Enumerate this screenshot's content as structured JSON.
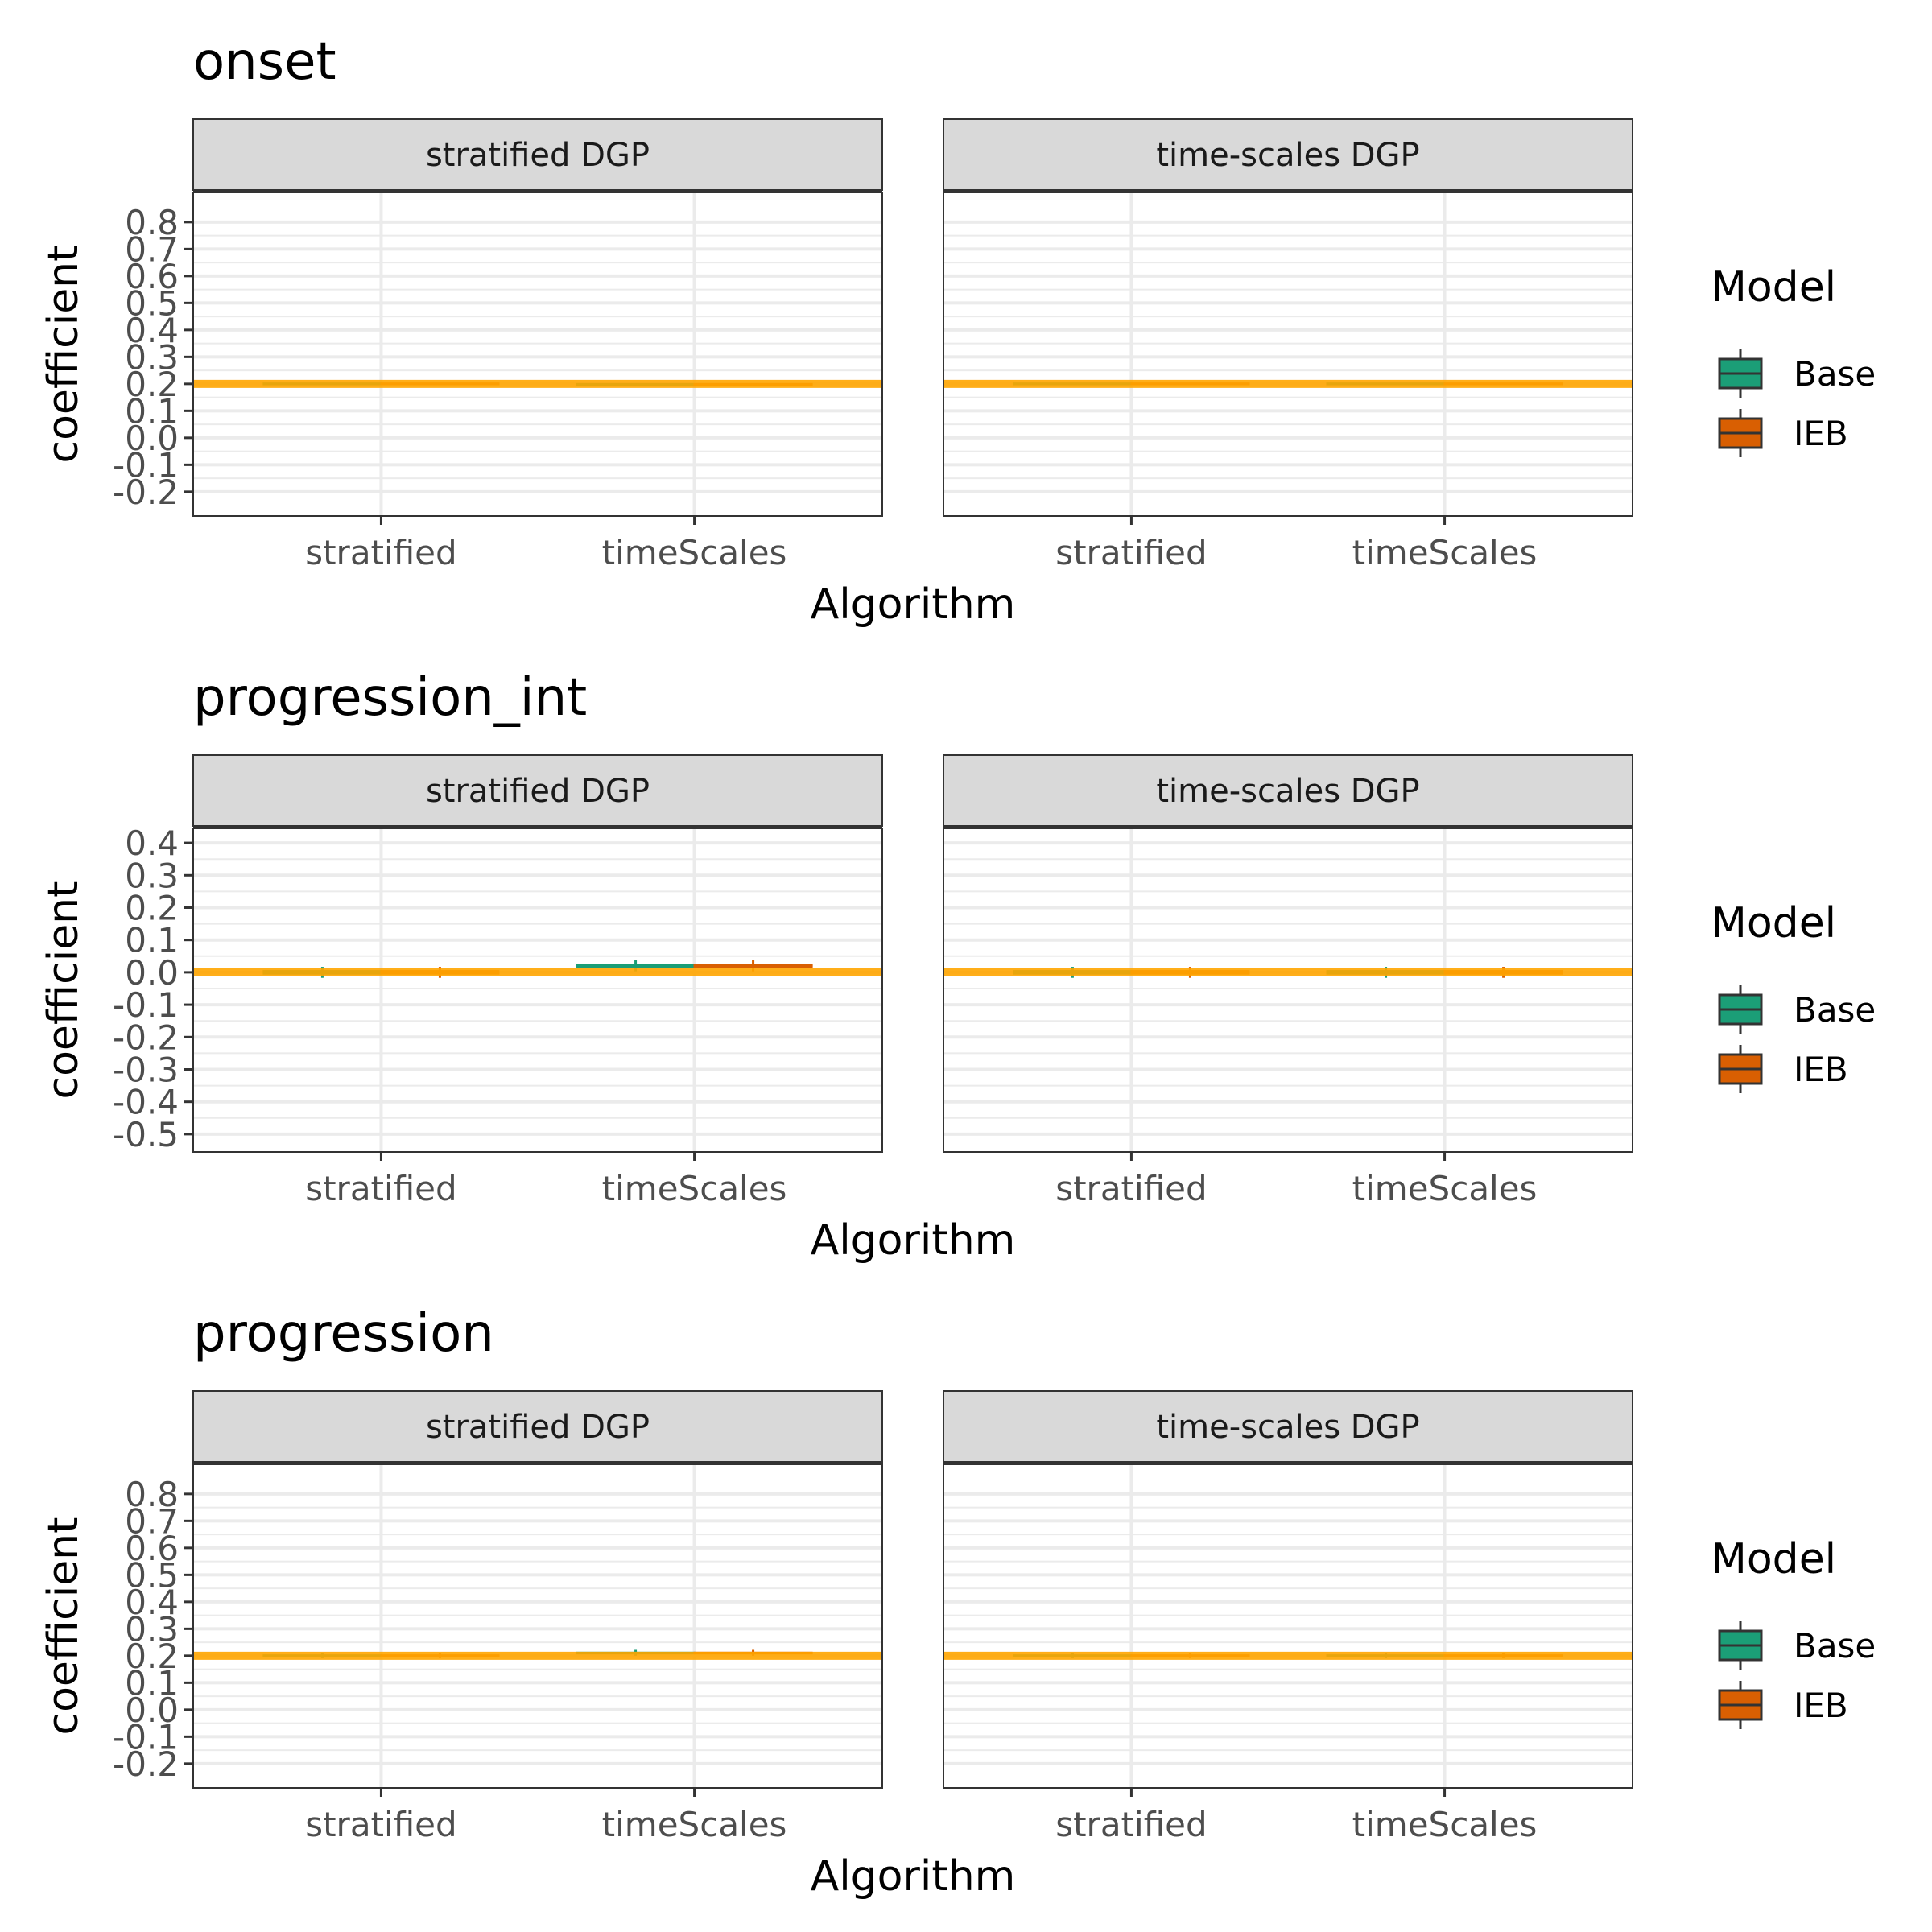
{
  "chart_data": [
    {
      "type": "box",
      "title": "onset",
      "xlabel": "Algorithm",
      "ylabel": "coefficient",
      "facets": [
        "stratified DGP",
        "time-scales DGP"
      ],
      "categories": [
        "stratified",
        "timeScales"
      ],
      "yticks": [
        "0.8",
        "0.7",
        "0.6",
        "0.5",
        "0.4",
        "0.3",
        "0.2",
        "0.1",
        "0.0",
        "-0.1",
        "-0.2"
      ],
      "ylim": [
        -0.29,
        0.91
      ],
      "reference_line": 0.2,
      "legend": {
        "title": "Model",
        "position": "right",
        "entries": [
          "Base",
          "IEB"
        ]
      },
      "series": [
        {
          "name": "Base",
          "color": "#1B9E77",
          "boxes": [
            {
              "facet": "stratified DGP",
              "category": "stratified",
              "lower": 0.195,
              "median": 0.2,
              "upper": 0.205,
              "whisker_low": 0.196,
              "whisker_high": 0.204
            },
            {
              "facet": "stratified DGP",
              "category": "timeScales",
              "lower": 0.193,
              "median": 0.198,
              "upper": 0.203,
              "whisker_low": 0.194,
              "whisker_high": 0.202
            },
            {
              "facet": "time-scales DGP",
              "category": "stratified",
              "lower": 0.195,
              "median": 0.2,
              "upper": 0.205,
              "whisker_low": 0.196,
              "whisker_high": 0.204
            },
            {
              "facet": "time-scales DGP",
              "category": "timeScales",
              "lower": 0.195,
              "median": 0.2,
              "upper": 0.205,
              "whisker_low": 0.196,
              "whisker_high": 0.204
            }
          ]
        },
        {
          "name": "IEB",
          "color": "#D95F02",
          "boxes": [
            {
              "facet": "stratified DGP",
              "category": "stratified",
              "lower": 0.195,
              "median": 0.2,
              "upper": 0.205,
              "whisker_low": 0.196,
              "whisker_high": 0.204
            },
            {
              "facet": "stratified DGP",
              "category": "timeScales",
              "lower": 0.193,
              "median": 0.198,
              "upper": 0.203,
              "whisker_low": 0.194,
              "whisker_high": 0.202
            },
            {
              "facet": "time-scales DGP",
              "category": "stratified",
              "lower": 0.195,
              "median": 0.2,
              "upper": 0.205,
              "whisker_low": 0.196,
              "whisker_high": 0.204
            },
            {
              "facet": "time-scales DGP",
              "category": "timeScales",
              "lower": 0.195,
              "median": 0.2,
              "upper": 0.205,
              "whisker_low": 0.196,
              "whisker_high": 0.204
            }
          ]
        }
      ]
    },
    {
      "type": "box",
      "title": "progression_int",
      "xlabel": "Algorithm",
      "ylabel": "coefficient",
      "facets": [
        "stratified DGP",
        "time-scales DGP"
      ],
      "categories": [
        "stratified",
        "timeScales"
      ],
      "yticks": [
        "0.4",
        "0.3",
        "0.2",
        "0.1",
        "0.0",
        "-0.1",
        "-0.2",
        "-0.3",
        "-0.4",
        "-0.5"
      ],
      "ylim": [
        -0.555,
        0.445
      ],
      "reference_line": 0.0,
      "legend": {
        "title": "Model",
        "position": "right",
        "entries": [
          "Base",
          "IEB"
        ]
      },
      "series": [
        {
          "name": "Base",
          "color": "#1B9E77",
          "boxes": [
            {
              "facet": "stratified DGP",
              "category": "stratified",
              "lower": -0.007,
              "median": 0.0,
              "upper": 0.007,
              "whisker_low": -0.017,
              "whisker_high": 0.017
            },
            {
              "facet": "stratified DGP",
              "category": "timeScales",
              "lower": 0.013,
              "median": 0.02,
              "upper": 0.027,
              "whisker_low": 0.003,
              "whisker_high": 0.037
            },
            {
              "facet": "time-scales DGP",
              "category": "stratified",
              "lower": -0.007,
              "median": 0.0,
              "upper": 0.007,
              "whisker_low": -0.017,
              "whisker_high": 0.017
            },
            {
              "facet": "time-scales DGP",
              "category": "timeScales",
              "lower": -0.007,
              "median": 0.0,
              "upper": 0.007,
              "whisker_low": -0.017,
              "whisker_high": 0.017
            }
          ]
        },
        {
          "name": "IEB",
          "color": "#D95F02",
          "boxes": [
            {
              "facet": "stratified DGP",
              "category": "stratified",
              "lower": -0.007,
              "median": 0.0,
              "upper": 0.007,
              "whisker_low": -0.017,
              "whisker_high": 0.017
            },
            {
              "facet": "stratified DGP",
              "category": "timeScales",
              "lower": 0.013,
              "median": 0.02,
              "upper": 0.027,
              "whisker_low": 0.003,
              "whisker_high": 0.037
            },
            {
              "facet": "time-scales DGP",
              "category": "stratified",
              "lower": -0.007,
              "median": 0.0,
              "upper": 0.007,
              "whisker_low": -0.017,
              "whisker_high": 0.017
            },
            {
              "facet": "time-scales DGP",
              "category": "timeScales",
              "lower": -0.007,
              "median": 0.0,
              "upper": 0.007,
              "whisker_low": -0.017,
              "whisker_high": 0.017
            }
          ]
        }
      ]
    },
    {
      "type": "box",
      "title": "progression",
      "xlabel": "Algorithm",
      "ylabel": "coefficient",
      "facets": [
        "stratified DGP",
        "time-scales DGP"
      ],
      "categories": [
        "stratified",
        "timeScales"
      ],
      "yticks": [
        "0.8",
        "0.7",
        "0.6",
        "0.5",
        "0.4",
        "0.3",
        "0.2",
        "0.1",
        "0.0",
        "-0.1",
        "-0.2"
      ],
      "ylim": [
        -0.29,
        0.91
      ],
      "reference_line": 0.2,
      "legend": {
        "title": "Model",
        "position": "right",
        "entries": [
          "Base",
          "IEB"
        ]
      },
      "series": [
        {
          "name": "Base",
          "color": "#1B9E77",
          "boxes": [
            {
              "facet": "stratified DGP",
              "category": "stratified",
              "lower": 0.195,
              "median": 0.2,
              "upper": 0.205,
              "whisker_low": 0.191,
              "whisker_high": 0.209
            },
            {
              "facet": "stratified DGP",
              "category": "timeScales",
              "lower": 0.205,
              "median": 0.21,
              "upper": 0.215,
              "whisker_low": 0.2,
              "whisker_high": 0.222
            },
            {
              "facet": "time-scales DGP",
              "category": "stratified",
              "lower": 0.195,
              "median": 0.2,
              "upper": 0.205,
              "whisker_low": 0.191,
              "whisker_high": 0.209
            },
            {
              "facet": "time-scales DGP",
              "category": "timeScales",
              "lower": 0.195,
              "median": 0.2,
              "upper": 0.205,
              "whisker_low": 0.191,
              "whisker_high": 0.209
            }
          ]
        },
        {
          "name": "IEB",
          "color": "#D95F02",
          "boxes": [
            {
              "facet": "stratified DGP",
              "category": "stratified",
              "lower": 0.195,
              "median": 0.2,
              "upper": 0.205,
              "whisker_low": 0.191,
              "whisker_high": 0.209
            },
            {
              "facet": "stratified DGP",
              "category": "timeScales",
              "lower": 0.205,
              "median": 0.21,
              "upper": 0.215,
              "whisker_low": 0.2,
              "whisker_high": 0.222
            },
            {
              "facet": "time-scales DGP",
              "category": "stratified",
              "lower": 0.195,
              "median": 0.2,
              "upper": 0.205,
              "whisker_low": 0.191,
              "whisker_high": 0.209
            },
            {
              "facet": "time-scales DGP",
              "category": "timeScales",
              "lower": 0.195,
              "median": 0.2,
              "upper": 0.205,
              "whisker_low": 0.191,
              "whisker_high": 0.209
            }
          ]
        }
      ]
    }
  ],
  "colors": {
    "reference_line": "#FFA500",
    "strip_background": "#D9D9D9",
    "panel_border": "#333333",
    "grid": "#EBEBEB",
    "axis_text": "#4D4D4D"
  }
}
